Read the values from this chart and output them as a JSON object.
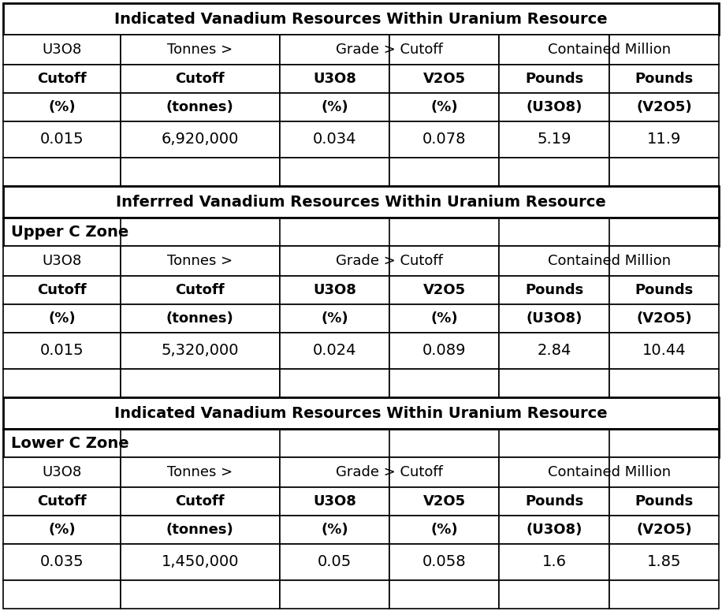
{
  "tables": [
    {
      "title": "Indicated Vanadium Resources Within Uranium Resource",
      "subtitle": null,
      "header_row1": [
        "U3O8",
        "Tonnes >",
        "Grade > Cutoff",
        "",
        "Contained Million",
        ""
      ],
      "header_row2": [
        "Cutoff",
        "Cutoff",
        "U3O8",
        "V2O5",
        "Pounds",
        "Pounds"
      ],
      "header_row3": [
        "(%)",
        "(tonnes)",
        "(%)",
        "(%)",
        "(U3O8)",
        "(V2O5)"
      ],
      "data_rows": [
        [
          "0.015",
          "6,920,000",
          "0.034",
          "0.078",
          "5.19",
          "11.9"
        ]
      ]
    },
    {
      "title": "Inferrred Vanadium Resources Within Uranium Resource",
      "subtitle": "Upper C Zone",
      "header_row1": [
        "U3O8",
        "Tonnes >",
        "Grade > Cutoff",
        "",
        "Contained Million",
        ""
      ],
      "header_row2": [
        "Cutoff",
        "Cutoff",
        "U3O8",
        "V2O5",
        "Pounds",
        "Pounds"
      ],
      "header_row3": [
        "(%)",
        "(tonnes)",
        "(%)",
        "(%)",
        "(U3O8)",
        "(V2O5)"
      ],
      "data_rows": [
        [
          "0.015",
          "5,320,000",
          "0.024",
          "0.089",
          "2.84",
          "10.44"
        ]
      ]
    },
    {
      "title": "Indicated Vanadium Resources Within Uranium Resource",
      "subtitle": "Lower C Zone",
      "header_row1": [
        "U3O8",
        "Tonnes >",
        "Grade > Cutoff",
        "",
        "Contained Million",
        ""
      ],
      "header_row2": [
        "Cutoff",
        "Cutoff",
        "U3O8",
        "V2O5",
        "Pounds",
        "Pounds"
      ],
      "header_row3": [
        "(%)",
        "(tonnes)",
        "(%)",
        "(%)",
        "(U3O8)",
        "(V2O5)"
      ],
      "data_rows": [
        [
          "0.035",
          "1,450,000",
          "0.05",
          "0.058",
          "1.6",
          "1.85"
        ]
      ]
    }
  ],
  "bg_color": "#ffffff",
  "title_bg": "#ffffff",
  "title_fg": "#000000",
  "subtitle_bg": "#ffffff",
  "subtitle_fg": "#000000",
  "header_bg": "#ffffff",
  "header_fg": "#000000",
  "data_bg": "#ffffff",
  "data_fg": "#000000",
  "border_color": "#000000",
  "title_fontsize": 14,
  "subtitle_fontsize": 14,
  "header_fontsize": 13,
  "data_fontsize": 14,
  "col_props": [
    0.155,
    0.21,
    0.145,
    0.145,
    0.145,
    0.145
  ]
}
